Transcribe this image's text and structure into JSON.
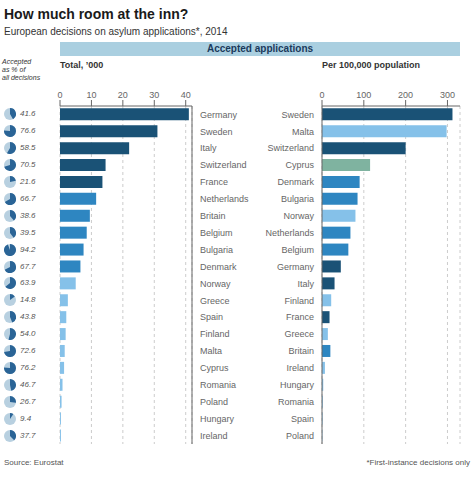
{
  "chart_data": [
    {
      "type": "bar",
      "orientation": "horizontal",
      "title": "How much room at the inn?",
      "subtitle": "European decisions on asylum applications*, 2014",
      "annotations": [
        "Accepted applications",
        "Source: Eurostat",
        "*First-instance decisions only"
      ],
      "x_label": "Total, ’000",
      "accepted_pct_label": "Accepted\nas % of\nall decisions",
      "categories": [
        "Germany",
        "Sweden",
        "Italy",
        "Switzerland",
        "France",
        "Netherlands",
        "Britain",
        "Belgium",
        "Bulgaria",
        "Denmark",
        "Norway",
        "Greece",
        "Spain",
        "Finland",
        "Malta",
        "Cyprus",
        "Romania",
        "Poland",
        "Hungary",
        "Ireland"
      ],
      "values": [
        41.0,
        31.0,
        22.0,
        14.5,
        13.5,
        11.5,
        9.5,
        8.5,
        7.5,
        6.5,
        5.0,
        2.5,
        2.0,
        1.8,
        1.5,
        1.3,
        0.8,
        0.5,
        0.3,
        0.3
      ],
      "colors": [
        "#1a5276",
        "#1a5276",
        "#1a5276",
        "#1a5276",
        "#1a5276",
        "#2e86c1",
        "#2e86c1",
        "#2e86c1",
        "#2e86c1",
        "#2e86c1",
        "#85c1e9",
        "#85c1e9",
        "#85c1e9",
        "#85c1e9",
        "#85c1e9",
        "#85c1e9",
        "#85c1e9",
        "#85c1e9",
        "#85c1e9",
        "#85c1e9"
      ],
      "accepted_pct": [
        41.6,
        76.6,
        58.5,
        70.5,
        21.6,
        66.7,
        38.6,
        39.5,
        94.2,
        67.7,
        63.9,
        14.8,
        43.8,
        54.0,
        72.6,
        76.2,
        46.7,
        26.7,
        9.4,
        37.7
      ],
      "xlim": [
        0,
        42
      ],
      "xticks": [
        0,
        10,
        20,
        30,
        40
      ],
      "grid": true
    },
    {
      "type": "bar",
      "orientation": "horizontal",
      "x_label": "Per 100,000 population",
      "categories": [
        "Sweden",
        "Malta",
        "Switzerland",
        "Cyprus",
        "Denmark",
        "Bulgaria",
        "Norway",
        "Netherlands",
        "Belgium",
        "Germany",
        "Italy",
        "Finland",
        "France",
        "Greece",
        "Britain",
        "Ireland",
        "Hungary",
        "Romania",
        "Spain",
        "Poland"
      ],
      "values": [
        312.0,
        298.0,
        200.0,
        115.0,
        90.0,
        85.0,
        80.0,
        68.0,
        63.0,
        45.0,
        30.0,
        22.0,
        18.0,
        14.0,
        20.0,
        7.0,
        3.0,
        2.0,
        1.5,
        1.0
      ],
      "colors": [
        "#1a5276",
        "#85c1e9",
        "#1a5276",
        "#7fb3a0",
        "#2e86c1",
        "#2e86c1",
        "#85c1e9",
        "#2e86c1",
        "#2e86c1",
        "#1a5276",
        "#1a5276",
        "#85c1e9",
        "#1a5276",
        "#85c1e9",
        "#2e86c1",
        "#85c1e9",
        "#85c1e9",
        "#85c1e9",
        "#85c1e9",
        "#85c1e9"
      ],
      "xlim": [
        0,
        330
      ],
      "xticks": [
        0,
        100,
        200,
        300
      ],
      "grid": true
    }
  ]
}
